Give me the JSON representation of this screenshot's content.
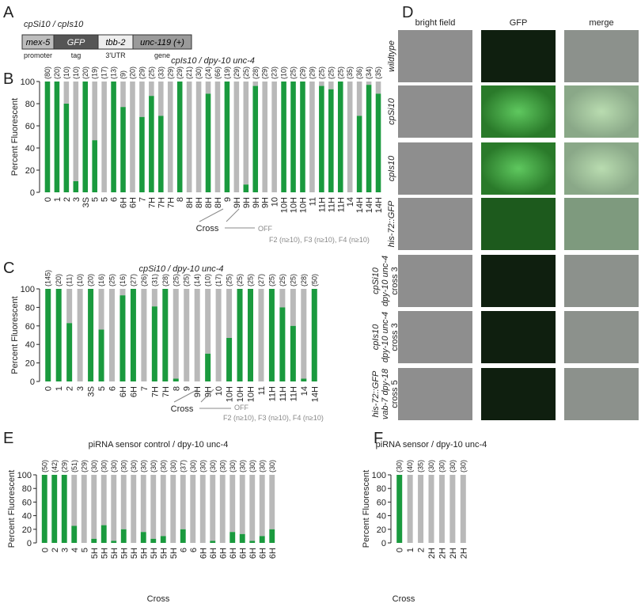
{
  "panel_labels": [
    "A",
    "B",
    "C",
    "D",
    "E",
    "F"
  ],
  "construct": {
    "title": "cpSi10 / cpIs10",
    "parts": [
      {
        "name": "mex-5",
        "role": "promoter"
      },
      {
        "name": "GFP",
        "role": "tag"
      },
      {
        "name": "tbb-2",
        "role": "3'UTR"
      },
      {
        "name": "unc-119 (+)",
        "role": "gene"
      }
    ]
  },
  "images": {
    "columns": [
      "bright field",
      "GFP",
      "merge"
    ],
    "rows": [
      [
        "wildtype"
      ],
      [
        "cpSi10"
      ],
      [
        "cpIs10"
      ],
      [
        "his-72::GFP"
      ],
      [
        "cpSi10",
        "dpy-10 unc-4",
        "cross 3"
      ],
      [
        "cpIs10",
        "dpy-10 unc-4",
        "cross 3"
      ],
      [
        "his-72::GFP",
        "vab-7 dpy-18",
        "cross 5"
      ]
    ]
  },
  "chart_data": [
    {
      "type": "bar",
      "title": "cpIs10 / dpy-10 unc-4",
      "ylabel": "Percent Fluorescent",
      "color": "#1a9a3e",
      "rest_color": "#b9b9b9",
      "categories": [
        "0",
        "1",
        "2",
        "3",
        "3S",
        "5",
        "5",
        "6",
        "6H",
        "6H",
        "7",
        "7H",
        "7H",
        "7H",
        "8",
        "8H",
        "8H",
        "8H",
        "8H",
        "9",
        "9H",
        "9H",
        "9H",
        "9H",
        "10",
        "10H",
        "10H",
        "10H",
        "11",
        "11H",
        "11H",
        "11H",
        "14",
        "14H",
        "14H",
        "14H"
      ],
      "values": [
        100,
        100,
        80,
        10,
        100,
        47,
        0,
        100,
        77,
        0,
        68,
        87,
        69,
        0,
        100,
        0,
        0,
        89,
        0,
        100,
        0,
        7,
        96,
        0,
        0,
        100,
        100,
        100,
        0,
        96,
        93,
        100,
        0,
        69,
        97,
        89
      ],
      "counts": [
        "(80)",
        "(20)",
        "(10)",
        "(10)",
        "(20)",
        "(19)",
        "(17)",
        "(13)",
        "(9)",
        "(20)",
        "(29)",
        "(25)",
        "(33)",
        "(29)",
        "(29)",
        "(21)",
        "(30)",
        "(24)",
        "(66)",
        "(19)",
        "(29)",
        "(25)",
        "(28)",
        "(29)",
        "(23)",
        "(10)",
        "(25)",
        "(29)",
        "(29)",
        "(25)",
        "(25)",
        "(25)",
        "(35)",
        "(36)",
        "(34)",
        "(35)"
      ],
      "annotations": [
        "Cross",
        "OFF",
        "F2 (n≥10), F3 (n≥10), F4 (n≥10)"
      ],
      "ylim": [
        0,
        100
      ],
      "yticks": [
        0,
        20,
        40,
        60,
        80,
        100
      ]
    },
    {
      "type": "bar",
      "title": "cpSi10 / dpy-10 unc-4",
      "ylabel": "Percent Fluorescent",
      "color": "#1a9a3e",
      "rest_color": "#b9b9b9",
      "categories": [
        "0",
        "1",
        "2",
        "3",
        "3S",
        "5",
        "6",
        "6H",
        "6H",
        "7",
        "7H",
        "7H",
        "8",
        "9",
        "9H",
        "9H",
        "10",
        "10H",
        "10H",
        "10H",
        "11",
        "11H",
        "11H",
        "11H",
        "14",
        "14H"
      ],
      "values": [
        100,
        100,
        63,
        0,
        100,
        56,
        0,
        93,
        100,
        0,
        81,
        100,
        3,
        0,
        0,
        30,
        0,
        47,
        100,
        100,
        0,
        100,
        80,
        60,
        3,
        100
      ],
      "counts": [
        "(145)",
        "(20)",
        "(11)",
        "(10)",
        "(20)",
        "(16)",
        "(25)",
        "(16)",
        "(27)",
        "(26)",
        "(31)",
        "(28)",
        "(25)",
        "(25)",
        "(14)",
        "(10)",
        "(17)",
        "(25)",
        "(25)",
        "(25)",
        "(27)",
        "(25)",
        "(25)",
        "(25)",
        "(28)",
        "(50)"
      ],
      "annotations": [
        "Cross",
        "OFF",
        "F2 (n≥10), F3 (n≥10), F4 (n≥10)"
      ],
      "ylim": [
        0,
        100
      ],
      "yticks": [
        0,
        20,
        40,
        60,
        80,
        100
      ]
    },
    {
      "type": "bar",
      "title": "piRNA sensor control / dpy-10 unc-4",
      "ylabel": "Percent Fluorescent",
      "xlabel": "Cross",
      "color": "#1a9a3e",
      "rest_color": "#b9b9b9",
      "categories": [
        "0",
        "2",
        "3",
        "4",
        "5",
        "5H",
        "5H",
        "5H",
        "5H",
        "5H",
        "5H",
        "5H",
        "5H",
        "5H",
        "6",
        "6",
        "6H",
        "6H",
        "6H",
        "6H",
        "6H",
        "6H",
        "6H",
        "6H"
      ],
      "values": [
        100,
        100,
        100,
        25,
        0,
        6,
        26,
        3,
        20,
        0,
        16,
        6,
        10,
        0,
        20,
        0,
        0,
        3,
        0,
        16,
        13,
        3,
        10,
        20
      ],
      "counts": [
        "(50)",
        "(42)",
        "(29)",
        "(51)",
        "(29)",
        "(30)",
        "(30)",
        "(30)",
        "(30)",
        "(30)",
        "(30)",
        "(30)",
        "(30)",
        "(30)",
        "(37)",
        "(30)",
        "(30)",
        "(30)",
        "(30)",
        "(30)",
        "(30)",
        "(30)",
        "(30)",
        "(30)"
      ],
      "ylim": [
        0,
        100
      ],
      "yticks": [
        0,
        20,
        40,
        60,
        80,
        100
      ]
    },
    {
      "type": "bar",
      "title": "piRNA sensor / dpy-10 unc-4",
      "ylabel": "Percent Fluorescent",
      "xlabel": "Cross",
      "color": "#1a9a3e",
      "rest_color": "#b9b9b9",
      "categories": [
        "0",
        "1",
        "2",
        "2H",
        "2H",
        "2H",
        "2H"
      ],
      "values": [
        100,
        0,
        0,
        0,
        0,
        0,
        0
      ],
      "counts": [
        "(30)",
        "(40)",
        "(35)",
        "(30)",
        "(30)",
        "(30)",
        "(30)"
      ],
      "ylim": [
        0,
        100
      ],
      "yticks": [
        0,
        20,
        40,
        60,
        80,
        100
      ]
    }
  ]
}
